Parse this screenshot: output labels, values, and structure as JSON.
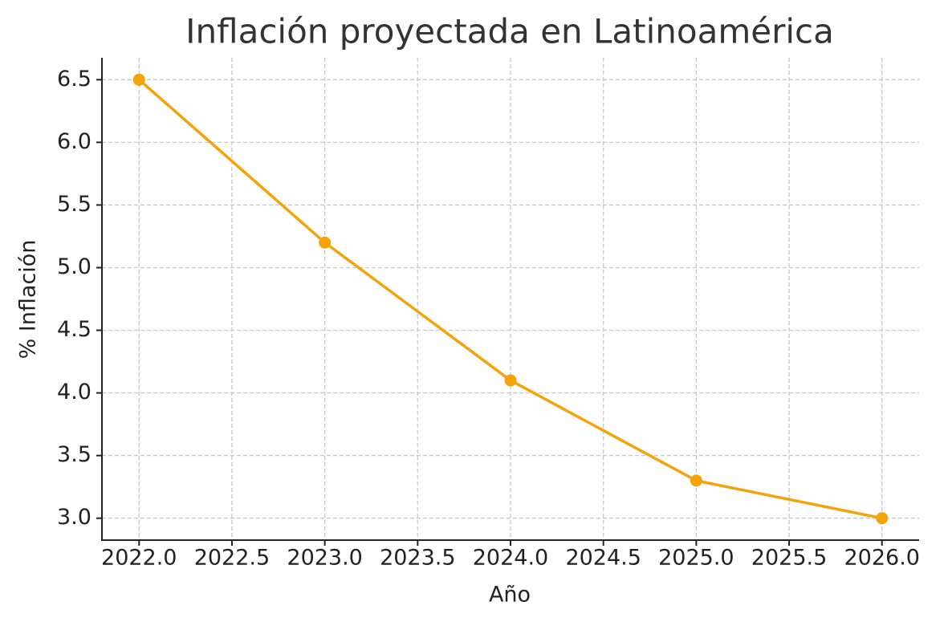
{
  "chart_data": {
    "type": "line",
    "title": "Inflación proyectada en Latinoamérica",
    "x_label": "Año",
    "y_label": "% Inflación",
    "x": [
      2022,
      2023,
      2024,
      2025,
      2026
    ],
    "series": [
      {
        "name": "Inflación",
        "color": "#f5a30a",
        "values": [
          6.5,
          5.2,
          4.1,
          3.3,
          3.0
        ]
      }
    ],
    "xlim": [
      2021.8,
      2026.2
    ],
    "xticks": [
      {
        "value": 2022,
        "label": "2022.0"
      },
      2022.5,
      {
        "value": 2023,
        "label": "2023.0"
      },
      2023.5,
      {
        "value": 2024,
        "label": "2024.0"
      },
      2024.5,
      {
        "value": 2025,
        "label": "2025.0"
      },
      2025.5,
      {
        "value": 2026,
        "label": "2026.0"
      }
    ],
    "ylim": [
      2.825,
      6.675
    ],
    "yticks": [
      {
        "value": 3,
        "label": "3.0"
      },
      3.5,
      {
        "value": 4,
        "label": "4.0"
      },
      4.5,
      {
        "value": 5,
        "label": "5.0"
      },
      5.5,
      {
        "value": 6,
        "label": "6.0"
      },
      6.5
    ],
    "grid": true
  }
}
